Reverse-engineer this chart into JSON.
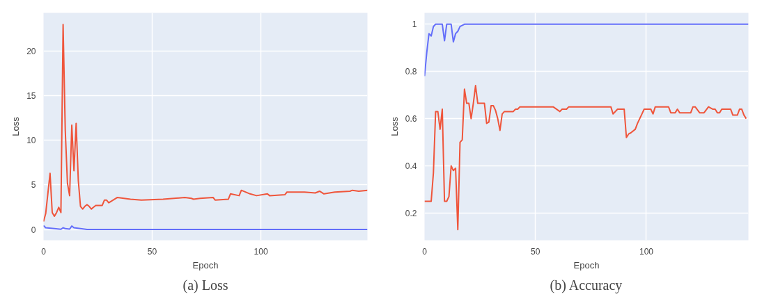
{
  "chart_data": [
    {
      "type": "line",
      "xlabel": "Epoch",
      "ylabel": "Loss",
      "annotations": [
        "(a) Loss"
      ],
      "xlim": [
        0,
        149
      ],
      "ylim": [
        -1.2,
        24.3
      ],
      "xticks": [
        0,
        50,
        100
      ],
      "yticks": [
        0,
        5,
        10,
        15,
        20
      ],
      "grid": true,
      "series": [
        {
          "color": "#ef553b",
          "x": [
            0,
            1,
            3,
            4,
            5,
            6,
            7,
            8,
            9,
            10,
            11,
            12,
            13,
            14,
            15,
            16,
            17,
            18,
            19,
            20,
            21,
            22,
            23,
            24,
            27,
            28,
            29,
            30,
            34,
            40,
            45,
            55,
            65,
            68,
            69,
            72,
            78,
            79,
            85,
            86,
            90,
            91,
            95,
            98,
            103,
            104,
            111,
            112,
            120,
            125,
            127,
            129,
            134,
            141,
            142,
            145,
            149
          ],
          "values": [
            0.9,
            1.8,
            6.3,
            1.9,
            1.5,
            1.9,
            2.5,
            1.9,
            23.0,
            11.1,
            5.2,
            3.8,
            11.7,
            6.6,
            11.9,
            5.5,
            2.6,
            2.3,
            2.6,
            2.8,
            2.6,
            2.3,
            2.5,
            2.7,
            2.7,
            3.3,
            3.3,
            3.0,
            3.6,
            3.4,
            3.3,
            3.4,
            3.6,
            3.5,
            3.4,
            3.5,
            3.6,
            3.3,
            3.4,
            4.0,
            3.8,
            4.4,
            4.0,
            3.8,
            4.0,
            3.8,
            3.9,
            4.2,
            4.2,
            4.1,
            4.3,
            4.0,
            4.2,
            4.3,
            4.4,
            4.3,
            4.4
          ]
        },
        {
          "color": "#636efa",
          "x": [
            0,
            1,
            5,
            8,
            9,
            10,
            12,
            13,
            14,
            17,
            20,
            149
          ],
          "values": [
            0.45,
            0.2,
            0.1,
            0.03,
            0.2,
            0.1,
            0.05,
            0.4,
            0.2,
            0.1,
            0,
            0
          ]
        }
      ]
    },
    {
      "type": "line",
      "xlabel": "Epoch",
      "ylabel": "Loss",
      "annotations": [
        "(b) Accuracy"
      ],
      "xlim": [
        0,
        146
      ],
      "ylim": [
        0.085,
        1.048
      ],
      "xticks": [
        0,
        50,
        100
      ],
      "yticks": [
        0.2,
        0.4,
        0.6,
        0.8,
        1
      ],
      "grid": true,
      "series": [
        {
          "color": "#636efa",
          "x": [
            0,
            1,
            2,
            3,
            4,
            5,
            7,
            8,
            9,
            10,
            11,
            12,
            13,
            14,
            15,
            16,
            18,
            20,
            146
          ],
          "values": [
            0.78,
            0.88,
            0.96,
            0.95,
            0.99,
            1,
            1,
            1,
            0.93,
            1,
            1,
            1,
            0.925,
            0.96,
            0.97,
            0.99,
            1,
            1,
            1
          ]
        },
        {
          "color": "#ef553b",
          "x": [
            0,
            3,
            4,
            5,
            6,
            7,
            8,
            9,
            10,
            11,
            12,
            13,
            14,
            15,
            16,
            17,
            18,
            19,
            20,
            21,
            22,
            23,
            24,
            27,
            28,
            29,
            30,
            31,
            32,
            33,
            34,
            35,
            36,
            40,
            41,
            42,
            43,
            57,
            58,
            61,
            62,
            64,
            65,
            84,
            85,
            87,
            90,
            91,
            92,
            93,
            95,
            96,
            98,
            99,
            102,
            103,
            104,
            110,
            111,
            113,
            114,
            115,
            120,
            121,
            122,
            124,
            126,
            128,
            130,
            131,
            132,
            133,
            134,
            138,
            139,
            141,
            142,
            143,
            144,
            145
          ],
          "values": [
            0.25,
            0.25,
            0.37,
            0.63,
            0.63,
            0.555,
            0.64,
            0.25,
            0.25,
            0.27,
            0.4,
            0.38,
            0.39,
            0.13,
            0.5,
            0.51,
            0.725,
            0.665,
            0.665,
            0.6,
            0.665,
            0.74,
            0.665,
            0.665,
            0.58,
            0.585,
            0.655,
            0.655,
            0.635,
            0.6,
            0.55,
            0.62,
            0.63,
            0.63,
            0.64,
            0.64,
            0.65,
            0.65,
            0.65,
            0.63,
            0.64,
            0.64,
            0.65,
            0.65,
            0.62,
            0.64,
            0.64,
            0.52,
            0.535,
            0.54,
            0.555,
            0.58,
            0.62,
            0.64,
            0.64,
            0.62,
            0.65,
            0.65,
            0.625,
            0.625,
            0.64,
            0.625,
            0.625,
            0.65,
            0.65,
            0.625,
            0.625,
            0.65,
            0.64,
            0.64,
            0.625,
            0.625,
            0.64,
            0.64,
            0.615,
            0.615,
            0.64,
            0.64,
            0.615,
            0.6
          ]
        }
      ]
    }
  ]
}
